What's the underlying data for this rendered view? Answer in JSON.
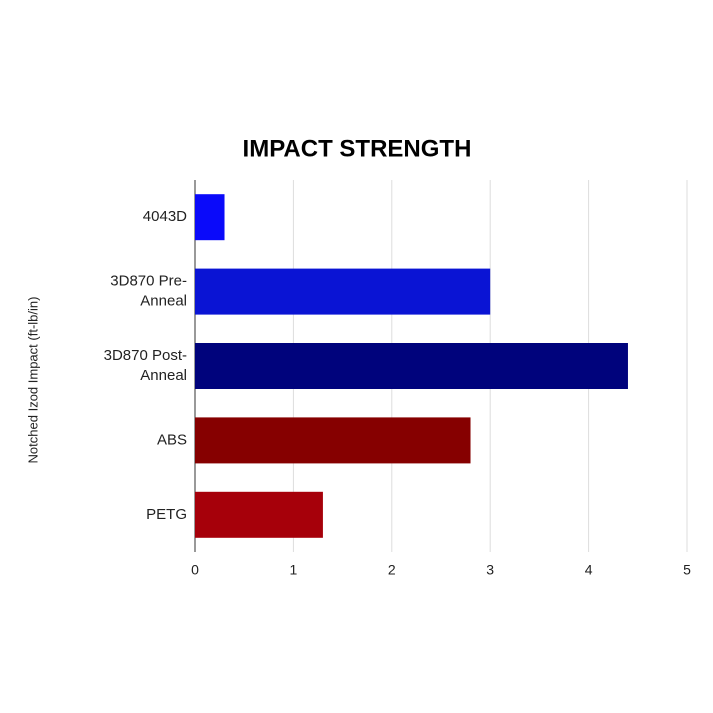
{
  "chart_data": {
    "type": "hbar",
    "title": "IMPACT STRENGTH",
    "y_label": "Notched Izod Impact (ft-lb/in)",
    "categories": [
      "4043D",
      "3D870 Pre-Anneal",
      "3D870 Post-Anneal",
      "ABS",
      "PETG"
    ],
    "values": [
      0.3,
      3.0,
      4.4,
      2.8,
      1.3
    ],
    "colors": [
      "#0a0afa",
      "#0a14d4",
      "#00037c",
      "#860000",
      "#a6000a"
    ],
    "xlim": [
      0,
      5
    ],
    "xticks": [
      0,
      1,
      2,
      3,
      4,
      5
    ],
    "grid": true
  }
}
